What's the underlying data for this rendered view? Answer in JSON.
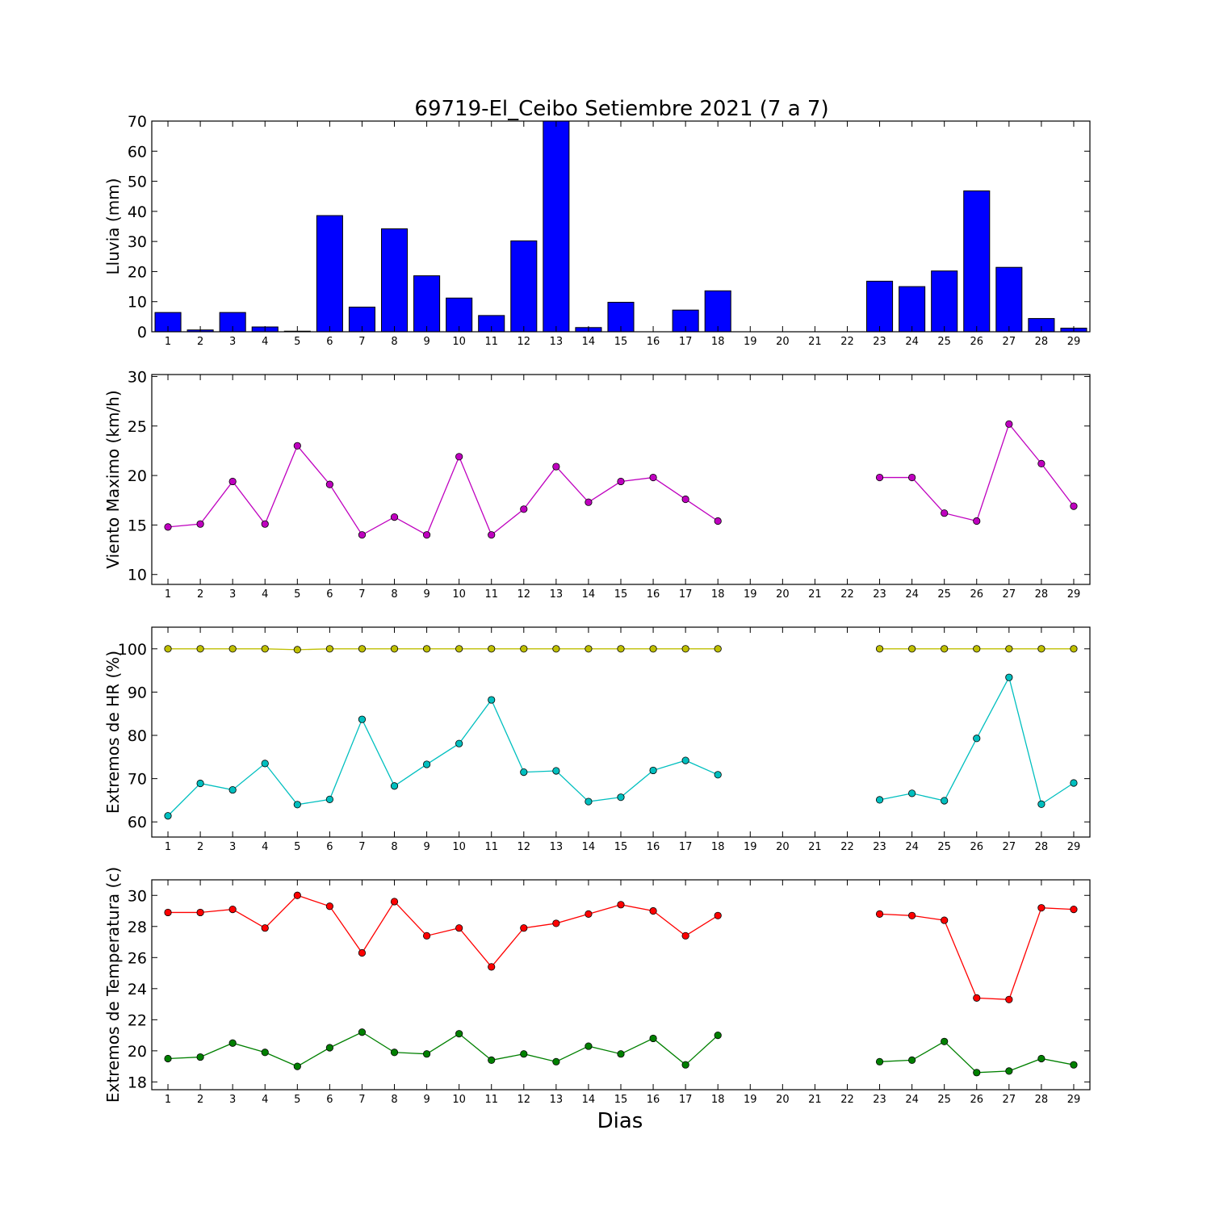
{
  "title": "69719-El_Ceibo Setiembre 2021  (7 a 7)",
  "xlabel": "Dias",
  "chart_data": [
    {
      "type": "bar",
      "id": "lluvia",
      "ylabel": "Lluvia (mm)",
      "ylim": [
        0,
        70
      ],
      "yticks": [
        0,
        10,
        20,
        30,
        40,
        50,
        60,
        70
      ],
      "x": [
        1,
        2,
        3,
        4,
        5,
        6,
        7,
        8,
        9,
        10,
        11,
        12,
        13,
        14,
        15,
        16,
        17,
        18,
        19,
        20,
        21,
        22,
        23,
        24,
        25,
        26,
        27,
        28,
        29
      ],
      "xlim": [
        0.5,
        29.5
      ],
      "series": [
        {
          "color": "#0000ff",
          "values": [
            6.4,
            0.6,
            6.4,
            1.6,
            0.2,
            38.6,
            8.2,
            34.2,
            18.6,
            11.2,
            5.4,
            30.2,
            70,
            1.4,
            9.8,
            null,
            7.2,
            13.6,
            null,
            null,
            null,
            null,
            16.8,
            15,
            20.2,
            46.8,
            21.4,
            4.4,
            1.2
          ]
        }
      ]
    },
    {
      "type": "line",
      "id": "viento",
      "ylabel": "Viento Maximo (km/h)",
      "ylim": [
        9,
        30.2
      ],
      "yticks": [
        10,
        15,
        20,
        25,
        30
      ],
      "x": [
        1,
        2,
        3,
        4,
        5,
        6,
        7,
        8,
        9,
        10,
        11,
        12,
        13,
        14,
        15,
        16,
        17,
        18,
        19,
        20,
        21,
        22,
        23,
        24,
        25,
        26,
        27,
        28,
        29
      ],
      "xlim": [
        0.5,
        29.5
      ],
      "series": [
        {
          "color": "#bf00bf",
          "values": [
            14.8,
            15.1,
            19.4,
            15.1,
            23.0,
            19.1,
            14.0,
            15.8,
            14.0,
            21.9,
            14.0,
            16.6,
            20.9,
            17.3,
            19.4,
            19.8,
            17.6,
            15.4,
            null,
            null,
            null,
            null,
            19.8,
            19.8,
            16.2,
            15.4,
            25.2,
            21.2,
            16.9
          ]
        }
      ]
    },
    {
      "type": "line",
      "id": "hr",
      "ylabel": "Extremos de HR (%)",
      "ylim": [
        56.5,
        105
      ],
      "yticks": [
        60,
        70,
        80,
        90,
        100
      ],
      "x": [
        1,
        2,
        3,
        4,
        5,
        6,
        7,
        8,
        9,
        10,
        11,
        12,
        13,
        14,
        15,
        16,
        17,
        18,
        19,
        20,
        21,
        22,
        23,
        24,
        25,
        26,
        27,
        28,
        29
      ],
      "xlim": [
        0.5,
        29.5
      ],
      "series": [
        {
          "color": "#bfbf00",
          "values": [
            100,
            100,
            100,
            100,
            99.8,
            100,
            100,
            100,
            100,
            100,
            100,
            100,
            100,
            100,
            100,
            100,
            100,
            100,
            null,
            null,
            null,
            null,
            100,
            100,
            100,
            100,
            100,
            100,
            100
          ]
        },
        {
          "color": "#00bfbf",
          "values": [
            61.4,
            68.9,
            67.4,
            73.5,
            64.0,
            65.2,
            83.7,
            68.3,
            73.3,
            78.1,
            88.2,
            71.5,
            71.8,
            64.7,
            65.7,
            71.9,
            74.2,
            70.9,
            null,
            null,
            null,
            null,
            65.1,
            66.6,
            64.9,
            79.3,
            93.4,
            64.1,
            69.0
          ]
        }
      ]
    },
    {
      "type": "line",
      "id": "temperatura",
      "ylabel": "Extremos de Temperatura (c)",
      "ylim": [
        17.5,
        31
      ],
      "yticks": [
        18,
        20,
        22,
        24,
        26,
        28,
        30
      ],
      "x": [
        1,
        2,
        3,
        4,
        5,
        6,
        7,
        8,
        9,
        10,
        11,
        12,
        13,
        14,
        15,
        16,
        17,
        18,
        19,
        20,
        21,
        22,
        23,
        24,
        25,
        26,
        27,
        28,
        29
      ],
      "xlim": [
        0.5,
        29.5
      ],
      "series": [
        {
          "color": "#ff0000",
          "values": [
            28.9,
            28.9,
            29.1,
            27.9,
            30.0,
            29.3,
            26.3,
            29.6,
            27.4,
            27.9,
            25.4,
            27.9,
            28.2,
            28.8,
            29.4,
            29.0,
            27.4,
            28.7,
            null,
            null,
            null,
            null,
            28.8,
            28.7,
            28.4,
            23.4,
            23.3,
            29.2,
            29.1
          ]
        },
        {
          "color": "#008000",
          "values": [
            19.5,
            19.6,
            20.5,
            19.9,
            19.0,
            20.2,
            21.2,
            19.9,
            19.8,
            21.1,
            19.4,
            19.8,
            19.3,
            20.3,
            19.8,
            20.8,
            19.1,
            21.0,
            null,
            null,
            null,
            null,
            19.3,
            19.4,
            20.6,
            18.6,
            18.7,
            19.5,
            19.1
          ]
        }
      ]
    }
  ]
}
